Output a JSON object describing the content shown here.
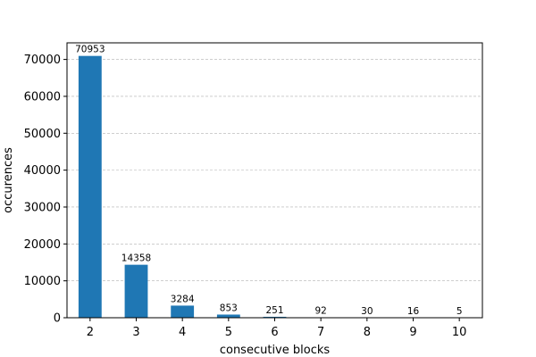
{
  "chart_data": {
    "type": "bar",
    "categories": [
      "2",
      "3",
      "4",
      "5",
      "6",
      "7",
      "8",
      "9",
      "10"
    ],
    "values": [
      70953,
      14358,
      3284,
      853,
      251,
      92,
      30,
      16,
      5
    ],
    "data_labels": [
      "70953",
      "14358",
      "3284",
      "853",
      "251",
      "92",
      "30",
      "16",
      "5"
    ],
    "xlabel": "consecutive blocks",
    "ylabel": "occurences",
    "ylim": [
      0,
      74500
    ],
    "yticks": [
      0,
      10000,
      20000,
      30000,
      40000,
      50000,
      60000,
      70000
    ],
    "ytick_labels": [
      "0",
      "10000",
      "20000",
      "30000",
      "40000",
      "50000",
      "60000",
      "70000"
    ],
    "grid": "y-dashed",
    "bar_color": "#1f77b4"
  }
}
